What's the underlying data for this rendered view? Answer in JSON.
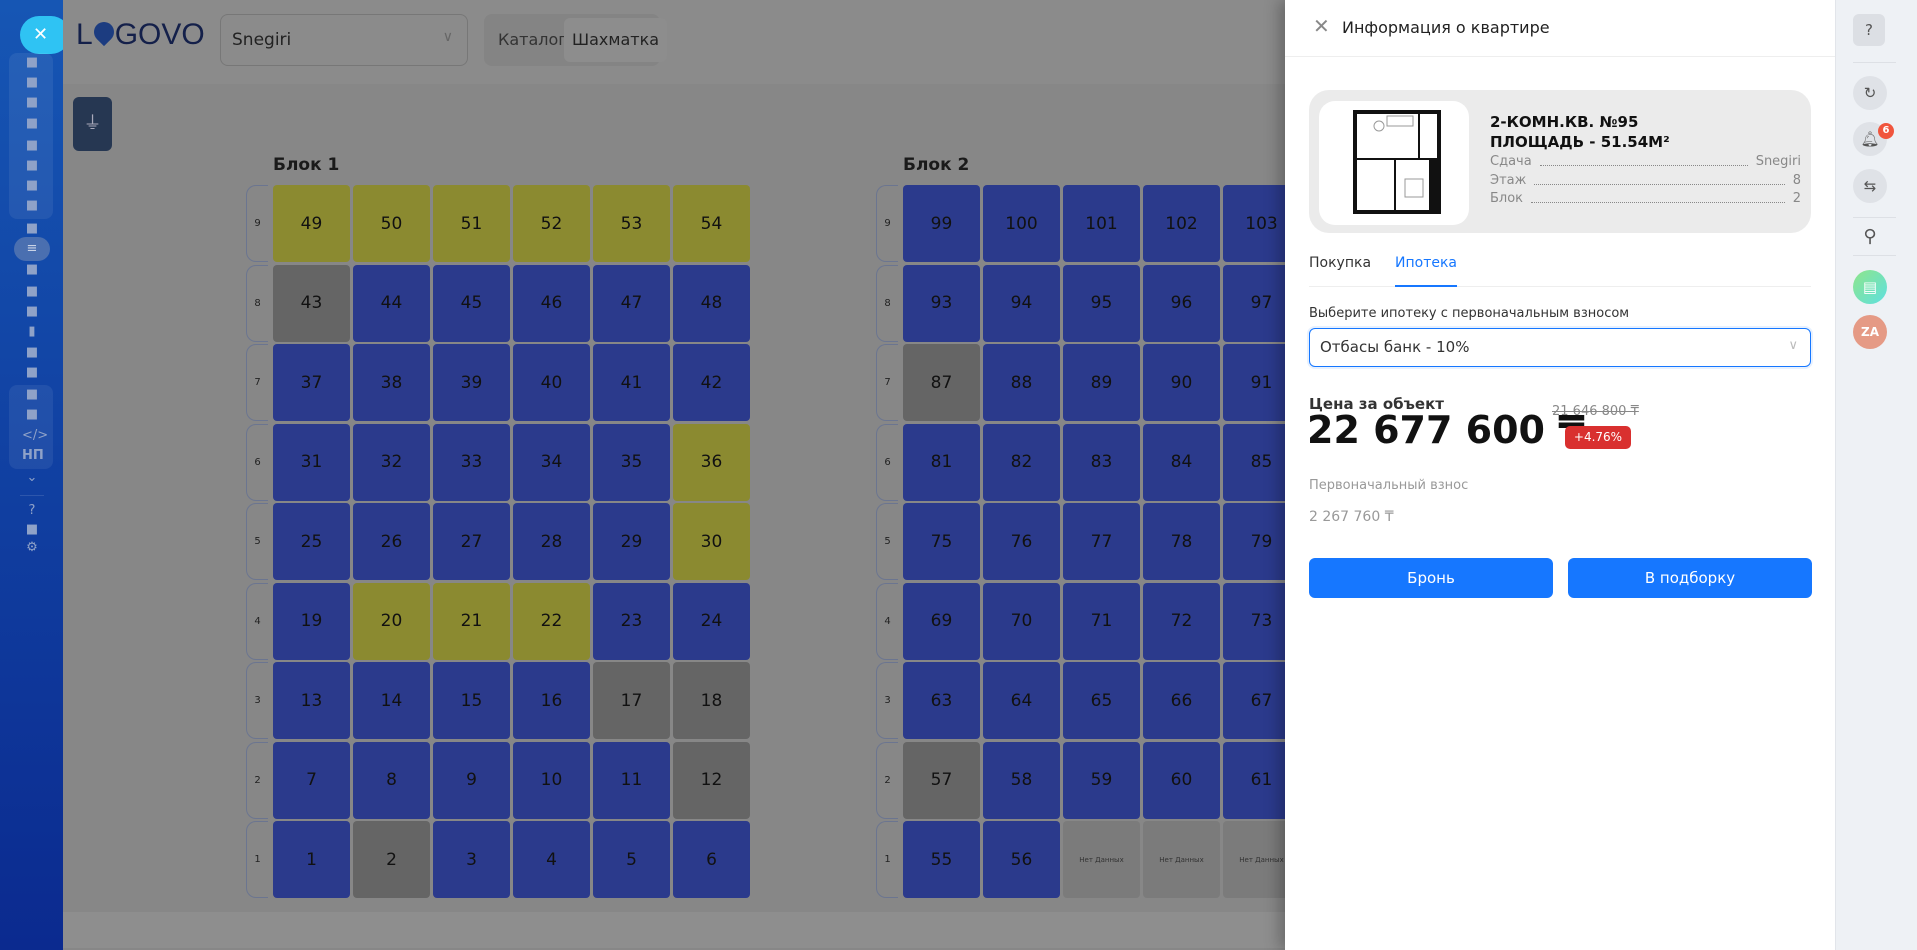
{
  "colors": {
    "available": "#2b3a8c",
    "reserved": "#8b8a30",
    "sold": "#656565",
    "nodata": "#7b7b7b",
    "accent": "#1677ff",
    "badge": "#d9302f"
  },
  "sidebar": {
    "close_icon": "close-icon",
    "icons": [
      "analytics-icon",
      "browser-icon",
      "chat-icon",
      "calendar-icon",
      "document-icon",
      "inbox-icon",
      "mail-icon",
      "users-icon",
      "task-icon",
      "filter-icon",
      "building-icon",
      "target-icon",
      "cart-icon",
      "chart-icon",
      "contact-card-icon",
      "robot-icon",
      "box-icon",
      "marketplace-icon",
      "code-icon",
      "np-icon",
      "chevron-down-icon",
      "help-icon",
      "network-icon",
      "settings-icon"
    ],
    "np_label": "НП"
  },
  "header": {
    "logo": "LOGOVO",
    "project_select": "Snegiri",
    "views": [
      "Каталог",
      "Шахматка"
    ],
    "active_view": "Шахматка"
  },
  "blocks": [
    {
      "title": "Блок 1",
      "floors": [
        {
          "floor": "9",
          "cells": [
            [
              49,
              "reserved"
            ],
            [
              50,
              "reserved"
            ],
            [
              51,
              "reserved"
            ],
            [
              52,
              "reserved"
            ],
            [
              53,
              "reserved"
            ],
            [
              54,
              "reserved"
            ]
          ]
        },
        {
          "floor": "8",
          "cells": [
            [
              43,
              "sold"
            ],
            [
              44,
              "available"
            ],
            [
              45,
              "available"
            ],
            [
              46,
              "available"
            ],
            [
              47,
              "available"
            ],
            [
              48,
              "available"
            ]
          ]
        },
        {
          "floor": "7",
          "cells": [
            [
              37,
              "available"
            ],
            [
              38,
              "available"
            ],
            [
              39,
              "available"
            ],
            [
              40,
              "available"
            ],
            [
              41,
              "available"
            ],
            [
              42,
              "available"
            ]
          ]
        },
        {
          "floor": "6",
          "cells": [
            [
              31,
              "available"
            ],
            [
              32,
              "available"
            ],
            [
              33,
              "available"
            ],
            [
              34,
              "available"
            ],
            [
              35,
              "available"
            ],
            [
              36,
              "reserved"
            ]
          ]
        },
        {
          "floor": "5",
          "cells": [
            [
              25,
              "available"
            ],
            [
              26,
              "available"
            ],
            [
              27,
              "available"
            ],
            [
              28,
              "available"
            ],
            [
              29,
              "available"
            ],
            [
              30,
              "reserved"
            ]
          ]
        },
        {
          "floor": "4",
          "cells": [
            [
              19,
              "available"
            ],
            [
              20,
              "reserved"
            ],
            [
              21,
              "reserved"
            ],
            [
              22,
              "reserved"
            ],
            [
              23,
              "available"
            ],
            [
              24,
              "available"
            ]
          ]
        },
        {
          "floor": "3",
          "cells": [
            [
              13,
              "available"
            ],
            [
              14,
              "available"
            ],
            [
              15,
              "available"
            ],
            [
              16,
              "available"
            ],
            [
              17,
              "sold"
            ],
            [
              18,
              "sold"
            ]
          ]
        },
        {
          "floor": "2",
          "cells": [
            [
              7,
              "available"
            ],
            [
              8,
              "available"
            ],
            [
              9,
              "available"
            ],
            [
              10,
              "available"
            ],
            [
              11,
              "available"
            ],
            [
              12,
              "sold"
            ]
          ]
        },
        {
          "floor": "1",
          "cells": [
            [
              1,
              "available"
            ],
            [
              2,
              "sold"
            ],
            [
              3,
              "available"
            ],
            [
              4,
              "available"
            ],
            [
              5,
              "available"
            ],
            [
              6,
              "available"
            ]
          ]
        }
      ]
    },
    {
      "title": "Блок 2",
      "floors": [
        {
          "floor": "9",
          "cells": [
            [
              99,
              "available"
            ],
            [
              100,
              "available"
            ],
            [
              101,
              "available"
            ],
            [
              102,
              "available"
            ],
            [
              103,
              "available"
            ]
          ]
        },
        {
          "floor": "8",
          "cells": [
            [
              93,
              "available"
            ],
            [
              94,
              "available"
            ],
            [
              95,
              "available"
            ],
            [
              96,
              "available"
            ],
            [
              97,
              "available"
            ]
          ]
        },
        {
          "floor": "7",
          "cells": [
            [
              87,
              "sold"
            ],
            [
              88,
              "available"
            ],
            [
              89,
              "available"
            ],
            [
              90,
              "available"
            ],
            [
              91,
              "available"
            ]
          ]
        },
        {
          "floor": "6",
          "cells": [
            [
              81,
              "available"
            ],
            [
              82,
              "available"
            ],
            [
              83,
              "available"
            ],
            [
              84,
              "available"
            ],
            [
              85,
              "available"
            ]
          ]
        },
        {
          "floor": "5",
          "cells": [
            [
              75,
              "available"
            ],
            [
              76,
              "available"
            ],
            [
              77,
              "available"
            ],
            [
              78,
              "available"
            ],
            [
              79,
              "available"
            ]
          ]
        },
        {
          "floor": "4",
          "cells": [
            [
              69,
              "available"
            ],
            [
              70,
              "available"
            ],
            [
              71,
              "available"
            ],
            [
              72,
              "available"
            ],
            [
              73,
              "available"
            ]
          ]
        },
        {
          "floor": "3",
          "cells": [
            [
              63,
              "available"
            ],
            [
              64,
              "available"
            ],
            [
              65,
              "available"
            ],
            [
              66,
              "available"
            ],
            [
              67,
              "available"
            ]
          ]
        },
        {
          "floor": "2",
          "cells": [
            [
              57,
              "sold"
            ],
            [
              58,
              "available"
            ],
            [
              59,
              "available"
            ],
            [
              60,
              "available"
            ],
            [
              61,
              "available"
            ]
          ]
        },
        {
          "floor": "1",
          "cells": [
            [
              55,
              "available"
            ],
            [
              56,
              "available"
            ],
            [
              "Нет Данных",
              "nodata"
            ],
            [
              "Нет Данных",
              "nodata"
            ],
            [
              "Нет Данных",
              "nodata"
            ]
          ]
        }
      ]
    }
  ],
  "panel": {
    "title": "Информация о квартире",
    "apt_title": "2-КОМН.КВ. №95",
    "area": "ПЛОЩАДЬ - 51.54М²",
    "props": [
      {
        "k": "Сдача",
        "v": "Snegiri"
      },
      {
        "k": "Этаж",
        "v": "8"
      },
      {
        "k": "Блок",
        "v": "2"
      }
    ],
    "tabs": [
      "Покупка",
      "Ипотека"
    ],
    "active_tab": "Ипотека",
    "mortgage_label": "Выберите ипотеку с первоначальным взносом",
    "mortgage_value": "Отбасы банк - 10%",
    "price_label": "Цена за объект",
    "price": "22 677 600 ₸",
    "old_price": "21 646 800 ₸",
    "markup": "+4.76%",
    "down_label": "Первоначальный взнос",
    "down_value": "2 267 760 ₸",
    "reserve_button": "Бронь",
    "collection_button": "В подборку"
  },
  "rail": {
    "notifications": "6",
    "avatar": "ZA"
  }
}
